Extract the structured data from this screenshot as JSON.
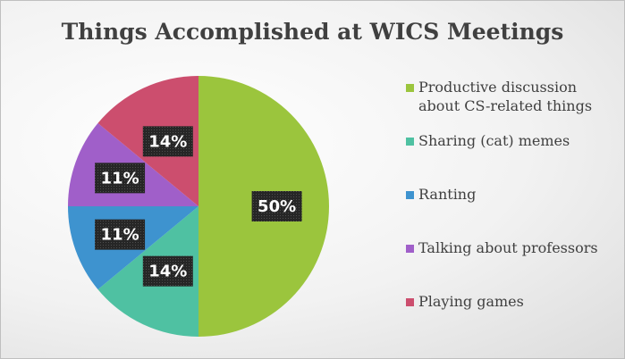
{
  "chart_data": {
    "type": "pie",
    "title": "Things Accomplished at WICS Meetings",
    "categories": [
      "Productive discussion about CS-related things",
      "Sharing (cat) memes",
      "Ranting",
      "Talking about professors",
      "Playing games"
    ],
    "values": [
      50,
      14,
      11,
      11,
      14
    ],
    "data_labels": [
      "50%",
      "14%",
      "11%",
      "11%",
      "14%"
    ],
    "colors": [
      "#9bc53d",
      "#4fc1a2",
      "#3e93cf",
      "#a05fc9",
      "#cc4e6e"
    ],
    "legend": "right"
  }
}
